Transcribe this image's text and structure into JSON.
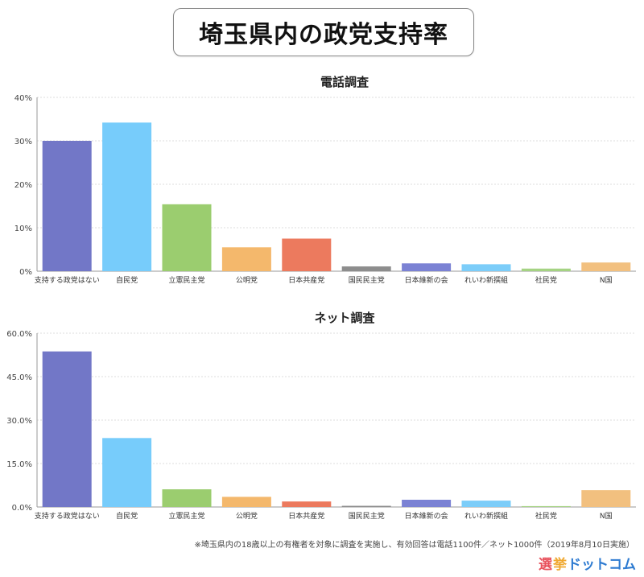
{
  "title": "埼玉県内の政党支持率",
  "footnote": "※埼玉県内の18歳以上の有権者を対象に調査を実施し、有効回答は電話1100件／ネット1000件（2019年8月10日実施）",
  "brand": {
    "part1": "選",
    "part2": "挙",
    "part3": "ドットコム"
  },
  "colors": [
    "#7277c7",
    "#77ccfb",
    "#9bcd6f",
    "#f4b86c",
    "#ec7a5e",
    "#8d8d8d",
    "#7b82d4",
    "#7ccdf9",
    "#a5d383",
    "#f2c07f"
  ],
  "chart_data": [
    {
      "type": "bar",
      "title": "電話調査",
      "categories": [
        "支持する政党はない",
        "自民党",
        "立憲民主党",
        "公明党",
        "日本共産党",
        "国民民主党",
        "日本維新の会",
        "れいわ新撰組",
        "社民党",
        "N国"
      ],
      "values": [
        30.0,
        34.2,
        15.4,
        5.5,
        7.5,
        1.1,
        1.8,
        1.6,
        0.6,
        2.0
      ],
      "ylim": [
        0,
        40
      ],
      "yticks": [
        0,
        10,
        20,
        30,
        40
      ],
      "ytick_labels": [
        "0%",
        "10%",
        "20%",
        "30%",
        "40%"
      ],
      "grid": true
    },
    {
      "type": "bar",
      "title": "ネット調査",
      "categories": [
        "支持する政党はない",
        "自民党",
        "立憲民主党",
        "公明党",
        "日本共産党",
        "国民民主党",
        "日本維新の会",
        "れいわ新撰組",
        "社民党",
        "N国"
      ],
      "values": [
        53.7,
        23.8,
        6.1,
        3.5,
        1.9,
        0.4,
        2.5,
        2.2,
        0.3,
        5.8
      ],
      "ylim": [
        0,
        60
      ],
      "yticks": [
        0,
        15,
        30,
        45,
        60
      ],
      "ytick_labels": [
        "0.0%",
        "15.0%",
        "30.0%",
        "45.0%",
        "60.0%"
      ],
      "grid": true
    }
  ]
}
